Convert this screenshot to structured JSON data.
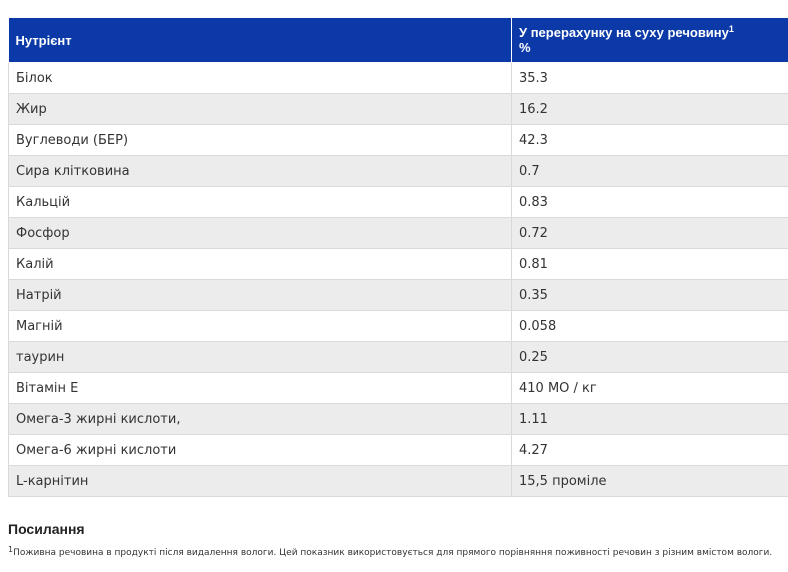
{
  "table": {
    "headers": {
      "nutrient": "Нутрієнт",
      "dry_matter_line1": "У перерахунку на суху речовину",
      "dry_matter_sup": "1",
      "dry_matter_line2": "%"
    },
    "rows": [
      {
        "name": "Білок",
        "value": "35.3"
      },
      {
        "name": "Жир",
        "value": "16.2"
      },
      {
        "name": "Вуглеводи (БЕР)",
        "value": "42.3"
      },
      {
        "name": "Сира клітковина",
        "value": "0.7"
      },
      {
        "name": "Кальцій",
        "value": "0.83"
      },
      {
        "name": "Фосфор",
        "value": "0.72"
      },
      {
        "name": "Калій",
        "value": "0.81"
      },
      {
        "name": "Натрій",
        "value": "0.35"
      },
      {
        "name": "Магній",
        "value": "0.058"
      },
      {
        "name": "таурин",
        "value": "0.25"
      },
      {
        "name": "Вітамін Е",
        "value": "410 МО / кг"
      },
      {
        "name": "Омега-3 жирні кислоти,",
        "value": "1.11"
      },
      {
        "name": "Омега-6 жирні кислоти",
        "value": "4.27"
      },
      {
        "name": "L-карнітин",
        "value": "15,5 проміле"
      }
    ]
  },
  "references": {
    "title": "Посилання",
    "footnote_marker": "1",
    "footnote_text": "Поживна речовина в продукті після видалення вологи. Цей показник використовується для прямого порівняння поживності речовин з різним вмістом вологи."
  },
  "colors": {
    "header_bg": "#0b3aa8",
    "header_text": "#ffffff",
    "row_alt_bg": "#ececec",
    "border": "#d9d9d9"
  }
}
